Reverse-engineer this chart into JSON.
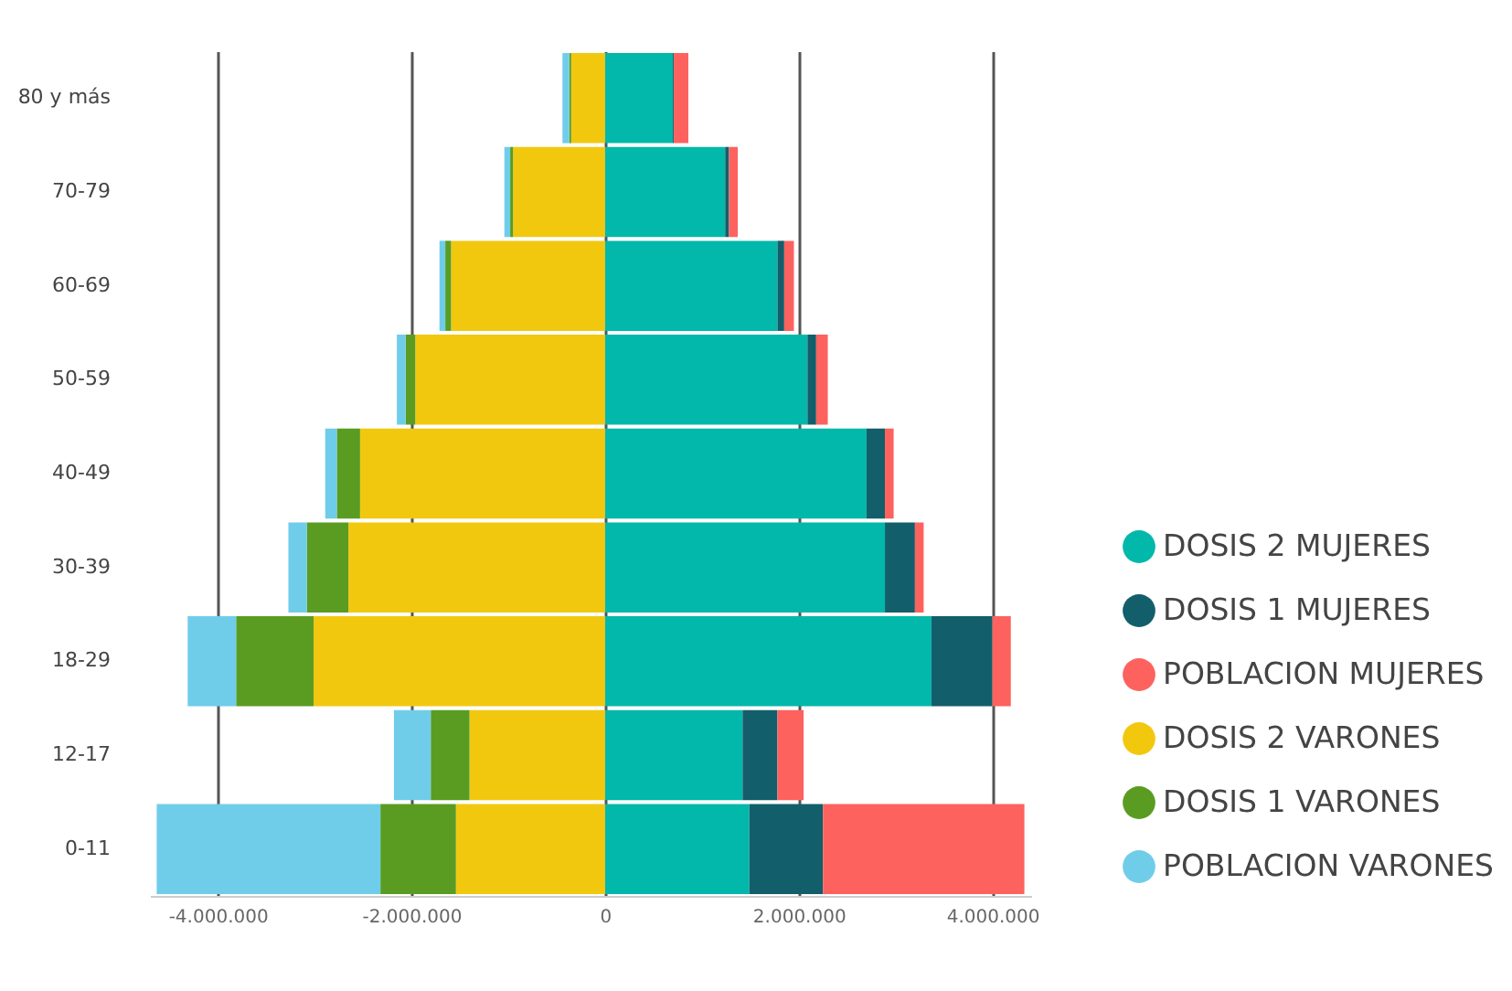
{
  "chart_data": {
    "type": "bar",
    "orientation": "horizontal",
    "stacked": true,
    "categories": [
      "80 y más",
      "70-79",
      "60-69",
      "50-59",
      "40-49",
      "30-39",
      "18-29",
      "12-17",
      "0-11"
    ],
    "series": [
      {
        "name": "DOSIS 2 MUJERES",
        "color": "#01b8aa",
        "values": [
          700000,
          1240000,
          1780000,
          2090000,
          2700000,
          2890000,
          3370000,
          1420000,
          1490000
        ]
      },
      {
        "name": "DOSIS 1 MUJERES",
        "color": "#135e6b",
        "values": [
          10000,
          40000,
          70000,
          90000,
          190000,
          310000,
          630000,
          360000,
          760000
        ]
      },
      {
        "name": "POBLACION MUJERES",
        "color": "#fd625e",
        "values": [
          150000,
          90000,
          100000,
          120000,
          90000,
          90000,
          190000,
          270000,
          2080000
        ]
      },
      {
        "name": "DOSIS 2 VARONES",
        "color": "#f2c80f",
        "values": [
          -350000,
          -950000,
          -1590000,
          -1960000,
          -2530000,
          -2650000,
          -3010000,
          -1400000,
          -1540000
        ]
      },
      {
        "name": "DOSIS 1 VARONES",
        "color": "#5a9c22",
        "values": [
          -20000,
          -30000,
          -60000,
          -100000,
          -240000,
          -430000,
          -800000,
          -400000,
          -780000
        ]
      },
      {
        "name": "POBLACION VARONES",
        "color": "#6fcdea",
        "values": [
          -70000,
          -60000,
          -60000,
          -90000,
          -120000,
          -190000,
          -500000,
          -380000,
          -2310000
        ]
      }
    ],
    "xlim": [
      -4700000,
      4400000
    ],
    "xticks": [
      {
        "value": -4000000,
        "label": "-4.000.000"
      },
      {
        "value": -2000000,
        "label": "-2.000.000"
      },
      0,
      {
        "value": 2000000,
        "label": "2.000.000"
      },
      {
        "value": 4000000,
        "label": "4.000.000"
      }
    ],
    "grid": "x",
    "legend": "bottom right"
  }
}
